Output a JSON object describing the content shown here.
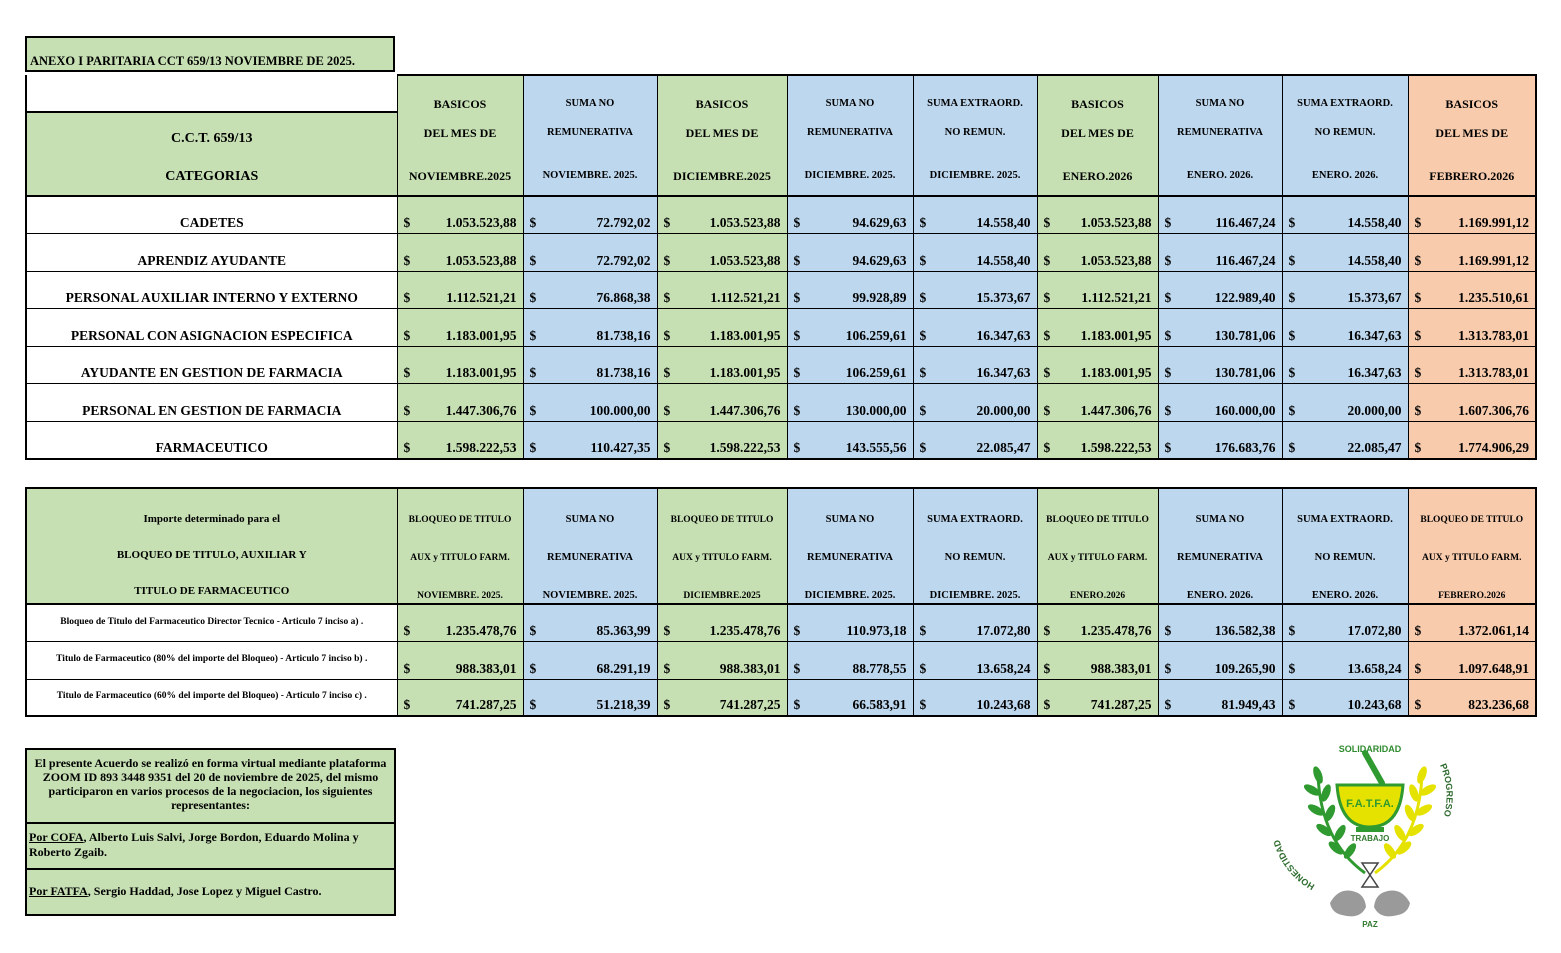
{
  "title": "ANEXO I PARITARIA CCT 659/13 NOVIEMBRE DE 2025.",
  "table1": {
    "cat_header": {
      "line1": "C.C.T.  659/13",
      "line2": "CATEGORIAS"
    },
    "columns": [
      {
        "l1": "BASICOS",
        "l2": "DEL MES DE",
        "l3": "NOVIEMBRE.2025",
        "color": "#c6e0b4"
      },
      {
        "l1": "SUMA NO",
        "l2": "REMUNERATIVA",
        "l3": "NOVIEMBRE. 2025.",
        "color": "#bdd7ee"
      },
      {
        "l1": "BASICOS",
        "l2": "DEL MES DE",
        "l3": "DICIEMBRE.2025",
        "color": "#c6e0b4"
      },
      {
        "l1": "SUMA NO",
        "l2": "REMUNERATIVA",
        "l3": "DICIEMBRE. 2025.",
        "color": "#bdd7ee"
      },
      {
        "l1": "SUMA EXTRAORD.",
        "l2": "NO REMUN.",
        "l3": "DICIEMBRE. 2025.",
        "color": "#bdd7ee"
      },
      {
        "l1": "BASICOS",
        "l2": "DEL MES DE",
        "l3": "ENERO.2026",
        "color": "#c6e0b4"
      },
      {
        "l1": "SUMA NO",
        "l2": "REMUNERATIVA",
        "l3": "ENERO. 2026.",
        "color": "#bdd7ee"
      },
      {
        "l1": "SUMA EXTRAORD.",
        "l2": "NO REMUN.",
        "l3": "ENERO. 2026.",
        "color": "#bdd7ee"
      },
      {
        "l1": "BASICOS",
        "l2": "DEL MES DE",
        "l3": "FEBRERO.2026",
        "color": "#f8cbad"
      }
    ],
    "currency": "$",
    "rows": [
      {
        "cat": "CADETES",
        "vals": [
          "1.053.523,88",
          "72.792,02",
          "1.053.523,88",
          "94.629,63",
          "14.558,40",
          "1.053.523,88",
          "116.467,24",
          "14.558,40",
          "1.169.991,12"
        ]
      },
      {
        "cat": "APRENDIZ AYUDANTE",
        "vals": [
          "1.053.523,88",
          "72.792,02",
          "1.053.523,88",
          "94.629,63",
          "14.558,40",
          "1.053.523,88",
          "116.467,24",
          "14.558,40",
          "1.169.991,12"
        ]
      },
      {
        "cat": "PERSONAL AUXILIAR INTERNO Y EXTERNO",
        "vals": [
          "1.112.521,21",
          "76.868,38",
          "1.112.521,21",
          "99.928,89",
          "15.373,67",
          "1.112.521,21",
          "122.989,40",
          "15.373,67",
          "1.235.510,61"
        ]
      },
      {
        "cat": "PERSONAL CON ASIGNACION ESPECIFICA",
        "vals": [
          "1.183.001,95",
          "81.738,16",
          "1.183.001,95",
          "106.259,61",
          "16.347,63",
          "1.183.001,95",
          "130.781,06",
          "16.347,63",
          "1.313.783,01"
        ]
      },
      {
        "cat": "AYUDANTE EN GESTION  DE FARMACIA",
        "vals": [
          "1.183.001,95",
          "81.738,16",
          "1.183.001,95",
          "106.259,61",
          "16.347,63",
          "1.183.001,95",
          "130.781,06",
          "16.347,63",
          "1.313.783,01"
        ]
      },
      {
        "cat": "PERSONAL EN GESTION DE FARMACIA",
        "vals": [
          "1.447.306,76",
          "100.000,00",
          "1.447.306,76",
          "130.000,00",
          "20.000,00",
          "1.447.306,76",
          "160.000,00",
          "20.000,00",
          "1.607.306,76"
        ]
      },
      {
        "cat": "FARMACEUTICO",
        "vals": [
          "1.598.222,53",
          "110.427,35",
          "1.598.222,53",
          "143.555,56",
          "22.085,47",
          "1.598.222,53",
          "176.683,76",
          "22.085,47",
          "1.774.906,29"
        ]
      }
    ]
  },
  "table2": {
    "cat_header": {
      "line1": "Importe determinado para el",
      "line2": "BLOQUEO  DE TITULO, AUXILIAR Y",
      "line3": "TITULO DE FARMACEUTICO"
    },
    "columns": [
      {
        "l1": "BLOQUEO DE TITULO",
        "l2": "AUX y TITULO FARM.",
        "l3": "NOVIEMBRE. 2025.",
        "color": "#c6e0b4",
        "small": true
      },
      {
        "l1": "SUMA NO",
        "l2": "REMUNERATIVA",
        "l3": "NOVIEMBRE. 2025.",
        "color": "#bdd7ee"
      },
      {
        "l1": "BLOQUEO DE TITULO",
        "l2": "AUX y TITULO FARM.",
        "l3": "DICIEMBRE.2025",
        "color": "#c6e0b4",
        "small": true
      },
      {
        "l1": "SUMA NO",
        "l2": "REMUNERATIVA",
        "l3": "DICIEMBRE. 2025.",
        "color": "#bdd7ee"
      },
      {
        "l1": "SUMA EXTRAORD.",
        "l2": "NO REMUN.",
        "l3": "DICIEMBRE. 2025.",
        "color": "#bdd7ee"
      },
      {
        "l1": "BLOQUEO DE TITULO",
        "l2": "AUX y TITULO FARM.",
        "l3": "ENERO.2026",
        "color": "#c6e0b4",
        "small": true
      },
      {
        "l1": "SUMA NO",
        "l2": "REMUNERATIVA",
        "l3": "ENERO. 2026.",
        "color": "#bdd7ee"
      },
      {
        "l1": "SUMA EXTRAORD.",
        "l2": "NO REMUN.",
        "l3": "ENERO. 2026.",
        "color": "#bdd7ee"
      },
      {
        "l1": "BLOQUEO DE TITULO",
        "l2": "AUX y TITULO FARM.",
        "l3": "FEBRERO.2026",
        "color": "#f8cbad",
        "small": true
      }
    ],
    "currency": "$",
    "rows": [
      {
        "cat": "Bloqueo de Titulo del Farmaceutico Director Tecnico - Articulo 7 inciso a) .",
        "vals": [
          "1.235.478,76",
          "85.363,99",
          "1.235.478,76",
          "110.973,18",
          "17.072,80",
          "1.235.478,76",
          "136.582,38",
          "17.072,80",
          "1.372.061,14"
        ]
      },
      {
        "cat": "Titulo de Farmaceutico (80% del importe del Bloqueo) - Articulo 7 inciso b) .",
        "vals": [
          "988.383,01",
          "68.291,19",
          "988.383,01",
          "88.778,55",
          "13.658,24",
          "988.383,01",
          "109.265,90",
          "13.658,24",
          "1.097.648,91"
        ]
      },
      {
        "cat": "Titulo de Farmaceutico (60% del importe del Bloqueo) - Articulo 7 inciso c) .",
        "vals": [
          "741.287,25",
          "51.218,39",
          "741.287,25",
          "66.583,91",
          "10.243,68",
          "741.287,25",
          "81.949,43",
          "10.243,68",
          "823.236,68"
        ]
      }
    ]
  },
  "note": {
    "main": "El presente Acuerdo se realizó en forma virtual mediante plataforma ZOOM ID 893 3448 9351 del 20 de noviembre de 2025, del mismo participaron en varios procesos de la negociacion, los siguientes representantes:",
    "rep1_label": "Por COFA",
    "rep1_text": ", Alberto Luis Salvi, Jorge Bordon, Eduardo Molina y Roberto Zgaib.",
    "rep2_label": "Por FATFA",
    "rep2_text": ", Sergio Haddad, Jose Lopez y Miguel Castro."
  },
  "logo": {
    "top": "SOLIDARIDAD",
    "left": "HONESTIDAD",
    "right": "PROGRESO",
    "center": "F.A.T.F.A.",
    "under": "TRABAJO",
    "bottom": "PAZ"
  }
}
